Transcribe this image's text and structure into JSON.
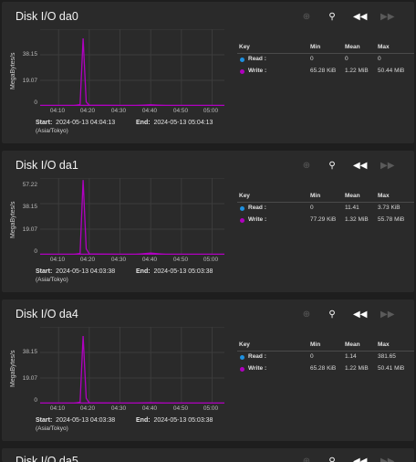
{
  "colors": {
    "read": "#1e90e0",
    "write": "#b000c0",
    "card": "#2a2a2a",
    "grid": "#3c3c3c"
  },
  "icons": [
    "zoom-in-icon",
    "zoom-reset-icon",
    "rewind-icon",
    "forward-icon"
  ],
  "legend_headers": {
    "key": "Key",
    "min": "Min",
    "mean": "Mean",
    "max": "Max"
  },
  "labels": {
    "start": "Start:",
    "end": "End:",
    "tz": "(Asia/Tokyo)",
    "ylabel": "MegaBytes/s"
  },
  "xticks": [
    "04:10",
    "04:20",
    "04:30",
    "04:40",
    "04:50",
    "05:00"
  ],
  "cards": [
    {
      "title": "Disk I/O da0",
      "yticks": [
        "38.15",
        "19.07",
        "0"
      ],
      "start": "2024-05-13 04:04:13",
      "end": "2024-05-13 05:04:13",
      "rows": [
        {
          "name": "Read :",
          "min": "0",
          "mean": "0",
          "max": "0"
        },
        {
          "name": "Write :",
          "min": "65.28 KiB",
          "mean": "1.22 MiB",
          "max": "50.44 MiB"
        }
      ]
    },
    {
      "title": "Disk I/O da1",
      "yticks": [
        "57.22",
        "38.15",
        "19.07",
        "0"
      ],
      "start": "2024-05-13 04:03:38",
      "end": "2024-05-13 05:03:38",
      "rows": [
        {
          "name": "Read :",
          "min": "0",
          "mean": "11.41",
          "max": "3.73 KiB"
        },
        {
          "name": "Write :",
          "min": "77.29 KiB",
          "mean": "1.32 MiB",
          "max": "55.78 MiB"
        }
      ]
    },
    {
      "title": "Disk I/O da4",
      "yticks": [
        "38.15",
        "19.07",
        "0"
      ],
      "start": "2024-05-13 04:03:38",
      "end": "2024-05-13 05:03:38",
      "rows": [
        {
          "name": "Read :",
          "min": "0",
          "mean": "1.14",
          "max": "381.65"
        },
        {
          "name": "Write :",
          "min": "65.28 KiB",
          "mean": "1.22 MiB",
          "max": "50.41 MiB"
        }
      ]
    },
    {
      "title": "Disk I/O da5"
    }
  ],
  "chart_data": [
    {
      "type": "line",
      "disk": "da0",
      "ylabel": "MegaBytes/s",
      "x": [
        "04:04:13",
        "04:10",
        "04:15",
        "04:17",
        "04:18",
        "04:19",
        "04:20",
        "04:25",
        "04:30",
        "04:35",
        "04:40",
        "04:45",
        "04:50",
        "04:55",
        "05:00",
        "05:04"
      ],
      "series": [
        {
          "name": "Read",
          "values": [
            0,
            0,
            0,
            0,
            0,
            0,
            0,
            0,
            0,
            0,
            0,
            0,
            0,
            0,
            0,
            0
          ]
        },
        {
          "name": "Write",
          "values": [
            0.1,
            0.2,
            0.3,
            1.0,
            50.44,
            3.0,
            0.5,
            0.4,
            0.3,
            0.2,
            0.8,
            0.3,
            0.2,
            0.2,
            0.2,
            0.1
          ]
        }
      ],
      "ylim": [
        0,
        57.22
      ]
    },
    {
      "type": "line",
      "disk": "da1",
      "ylabel": "MegaBytes/s",
      "x": [
        "04:03:38",
        "04:10",
        "04:15",
        "04:17",
        "04:18",
        "04:19",
        "04:20",
        "04:25",
        "04:30",
        "04:35",
        "04:40",
        "04:45",
        "04:50",
        "04:55",
        "05:00",
        "05:03"
      ],
      "series": [
        {
          "name": "Read",
          "values": [
            0,
            0,
            0,
            0,
            0,
            0,
            0,
            0,
            0,
            0,
            0,
            0,
            0,
            0,
            0,
            0
          ]
        },
        {
          "name": "Write",
          "values": [
            0.1,
            0.2,
            0.3,
            1.0,
            55.78,
            4.5,
            0.6,
            0.4,
            0.3,
            0.2,
            1.2,
            0.3,
            0.2,
            0.2,
            0.2,
            0.1
          ]
        }
      ],
      "ylim": [
        0,
        57.22
      ]
    },
    {
      "type": "line",
      "disk": "da4",
      "ylabel": "MegaBytes/s",
      "x": [
        "04:03:38",
        "04:10",
        "04:15",
        "04:17",
        "04:18",
        "04:19",
        "04:20",
        "04:25",
        "04:30",
        "04:35",
        "04:40",
        "04:45",
        "04:50",
        "04:55",
        "05:00",
        "05:03"
      ],
      "series": [
        {
          "name": "Read",
          "values": [
            0,
            0,
            0,
            0,
            0,
            0,
            0,
            0,
            0,
            0,
            0,
            0,
            0,
            0,
            0,
            0
          ]
        },
        {
          "name": "Write",
          "values": [
            0.1,
            0.2,
            0.3,
            1.0,
            50.41,
            4.0,
            0.5,
            0.4,
            0.3,
            0.2,
            0.6,
            0.3,
            0.2,
            0.2,
            0.2,
            0.1
          ]
        }
      ],
      "ylim": [
        0,
        57.22
      ]
    }
  ]
}
